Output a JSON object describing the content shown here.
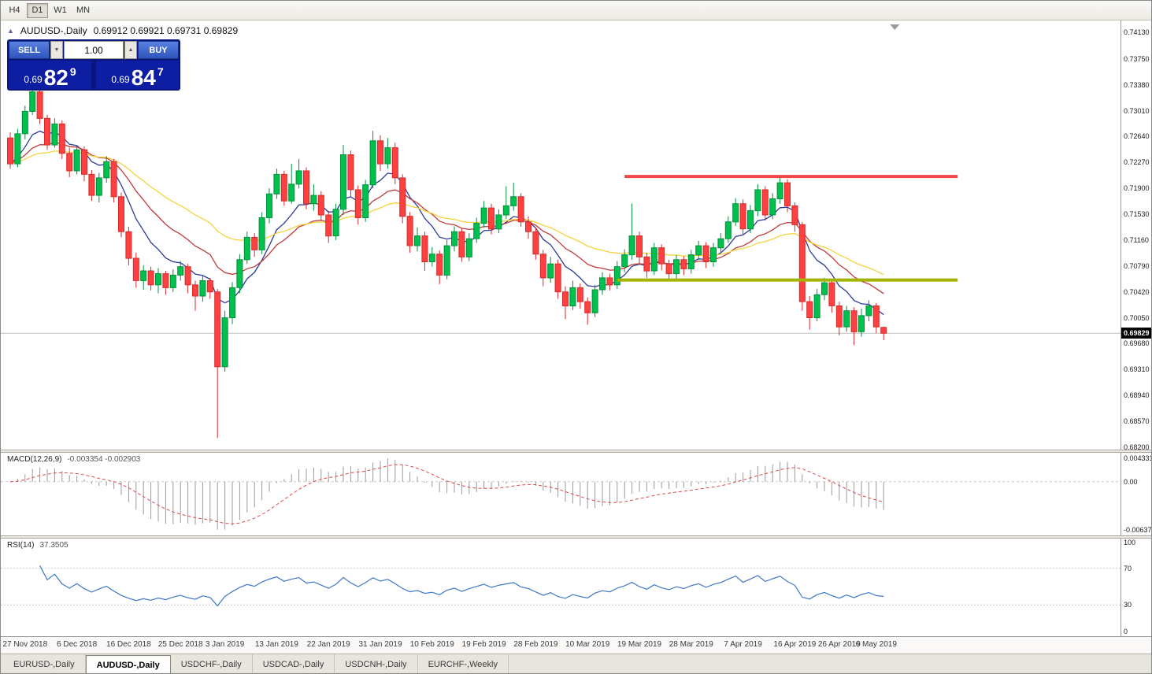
{
  "toolbar": {
    "timeframes": [
      {
        "label": "H4",
        "active": false
      },
      {
        "label": "D1",
        "active": true
      },
      {
        "label": "W1",
        "active": false
      },
      {
        "label": "MN",
        "active": false
      }
    ]
  },
  "chart": {
    "title": "AUDUSD-,Daily",
    "ohlc": "0.69912 0.69921 0.69731 0.69829"
  },
  "icons": {
    "collapse": "▲",
    "volume_down": "▼",
    "volume_up": "▲"
  },
  "one_click": {
    "sell_label": "SELL",
    "buy_label": "BUY",
    "volume": "1.00",
    "sell_price": {
      "small": "0.69",
      "big": "82",
      "sup": "9"
    },
    "buy_price": {
      "small": "0.69",
      "big": "84",
      "sup": "7"
    }
  },
  "price_axis": {
    "ticks": [
      "0.74130",
      "0.73750",
      "0.73380",
      "0.73010",
      "0.72640",
      "0.72270",
      "0.71900",
      "0.71530",
      "0.71160",
      "0.70790",
      "0.70420",
      "0.70050",
      "0.69680",
      "0.69310",
      "0.68940",
      "0.68570",
      "0.68200"
    ],
    "current": "0.69829"
  },
  "macd_axis": {
    "top": "0.004331",
    "zero": "0.00",
    "bottom": "-0.006371"
  },
  "rsi_axis": {
    "top": "100",
    "upper": "70",
    "lower": "30",
    "bottom": "0"
  },
  "indicators": {
    "macd_label": "MACD(12,26,9)",
    "macd_values": "-0.003354 -0.002903",
    "rsi_label": "RSI(14)",
    "rsi_value": "37.3505"
  },
  "tabs": [
    {
      "label": "EURUSD-,Daily",
      "active": false
    },
    {
      "label": "AUDUSD-,Daily",
      "active": true
    },
    {
      "label": "USDCHF-,Daily",
      "active": false
    },
    {
      "label": "USDCAD-,Daily",
      "active": false
    },
    {
      "label": "USDCNH-,Daily",
      "active": false
    },
    {
      "label": "EURCHF-,Weekly",
      "active": false
    }
  ],
  "colors": {
    "bull": "#00c14e",
    "bull_border": "#00913a",
    "bear": "#ff4040",
    "bear_border": "#d62b2b",
    "bid_line": "#c0c0c0",
    "macd_hist": "#9a9a9a",
    "macd_signal": "#e04848",
    "macd_zero": "#c8c8c8",
    "rsi_line": "#3e77c9",
    "rsi_level": "#c8c8c8",
    "shift_marker": "#9a9a9a"
  },
  "chart_data": {
    "type": "candlestick",
    "symbol": "AUDUSD",
    "timeframe": "Daily",
    "bid": 0.69829,
    "ask": 0.69847,
    "price_range": {
      "min": 0.68166,
      "max": 0.74299
    },
    "overlays": [
      {
        "name": "ma-fast",
        "type": "ema",
        "period": 8,
        "color": "#2c3b9b"
      },
      {
        "name": "ma-mid",
        "type": "ema",
        "period": 17,
        "color": "#c03a3a"
      },
      {
        "name": "ma-slow",
        "type": "ema",
        "period": 34,
        "color": "#f5d33c"
      }
    ],
    "objects": [
      {
        "name": "resistance-line",
        "type": "hline",
        "price": 0.7207,
        "from_index": 83,
        "to_index": 128,
        "color": "#f04848",
        "width": 4
      },
      {
        "name": "support-line",
        "type": "hline",
        "price": 0.7059,
        "from_index": 82,
        "to_index": 128,
        "color": "#a3b400",
        "width": 4
      }
    ],
    "indicator_settings": [
      {
        "type": "macd",
        "fast": 12,
        "slow": 26,
        "signal": 9
      },
      {
        "type": "rsi",
        "period": 14
      }
    ],
    "dates": [
      {
        "label": "27 Nov 2018",
        "index": 2
      },
      {
        "label": "6 Dec 2018",
        "index": 9
      },
      {
        "label": "16 Dec 2018",
        "index": 16
      },
      {
        "label": "25 Dec 2018",
        "index": 23
      },
      {
        "label": "3 Jan 2019",
        "index": 29
      },
      {
        "label": "13 Jan 2019",
        "index": 36
      },
      {
        "label": "22 Jan 2019",
        "index": 43
      },
      {
        "label": "31 Jan 2019",
        "index": 50
      },
      {
        "label": "10 Feb 2019",
        "index": 57
      },
      {
        "label": "19 Feb 2019",
        "index": 64
      },
      {
        "label": "28 Feb 2019",
        "index": 71
      },
      {
        "label": "10 Mar 2019",
        "index": 78
      },
      {
        "label": "19 Mar 2019",
        "index": 85
      },
      {
        "label": "28 Mar 2019",
        "index": 92
      },
      {
        "label": "7 Apr 2019",
        "index": 99
      },
      {
        "label": "16 Apr 2019",
        "index": 106
      },
      {
        "label": "26 Apr 2019",
        "index": 112
      },
      {
        "label": "6 May 2019",
        "index": 117
      }
    ],
    "candles": [
      [
        0.7262,
        0.727,
        0.7218,
        0.7225
      ],
      [
        0.7225,
        0.7275,
        0.722,
        0.7268
      ],
      [
        0.7268,
        0.7308,
        0.726,
        0.73
      ],
      [
        0.73,
        0.7337,
        0.7295,
        0.7328
      ],
      [
        0.7328,
        0.7332,
        0.7282,
        0.729
      ],
      [
        0.729,
        0.7295,
        0.7245,
        0.7252
      ],
      [
        0.7252,
        0.729,
        0.7248,
        0.7282
      ],
      [
        0.7282,
        0.7287,
        0.7232,
        0.724
      ],
      [
        0.724,
        0.7248,
        0.7206,
        0.7215
      ],
      [
        0.7215,
        0.7252,
        0.721,
        0.7245
      ],
      [
        0.7245,
        0.725,
        0.72,
        0.721
      ],
      [
        0.721,
        0.7216,
        0.7172,
        0.718
      ],
      [
        0.718,
        0.7212,
        0.717,
        0.7205
      ],
      [
        0.7205,
        0.7236,
        0.7198,
        0.7228
      ],
      [
        0.7228,
        0.7232,
        0.717,
        0.7178
      ],
      [
        0.7178,
        0.7184,
        0.712,
        0.7128
      ],
      [
        0.7128,
        0.7135,
        0.708,
        0.709
      ],
      [
        0.709,
        0.7098,
        0.7048,
        0.7058
      ],
      [
        0.7058,
        0.708,
        0.7045,
        0.7072
      ],
      [
        0.7072,
        0.7078,
        0.7044,
        0.7052
      ],
      [
        0.7052,
        0.7076,
        0.704,
        0.7068
      ],
      [
        0.7068,
        0.7072,
        0.7038,
        0.7048
      ],
      [
        0.7048,
        0.7074,
        0.7042,
        0.7066
      ],
      [
        0.7066,
        0.7086,
        0.7058,
        0.7078
      ],
      [
        0.7078,
        0.7082,
        0.704,
        0.7052
      ],
      [
        0.7052,
        0.7058,
        0.7015,
        0.7036
      ],
      [
        0.7036,
        0.7066,
        0.7028,
        0.7058
      ],
      [
        0.7058,
        0.7062,
        0.7032,
        0.7042
      ],
      [
        0.7042,
        0.7046,
        0.6833,
        0.6935
      ],
      [
        0.6935,
        0.7015,
        0.6928,
        0.7005
      ],
      [
        0.7005,
        0.7056,
        0.6996,
        0.7048
      ],
      [
        0.7048,
        0.7096,
        0.704,
        0.7088
      ],
      [
        0.7088,
        0.7128,
        0.7082,
        0.712
      ],
      [
        0.712,
        0.7126,
        0.7092,
        0.7102
      ],
      [
        0.7102,
        0.7156,
        0.7096,
        0.7148
      ],
      [
        0.7148,
        0.719,
        0.714,
        0.7182
      ],
      [
        0.7182,
        0.7218,
        0.7175,
        0.721
      ],
      [
        0.721,
        0.7215,
        0.7165,
        0.7172
      ],
      [
        0.7172,
        0.7225,
        0.7168,
        0.7196
      ],
      [
        0.7196,
        0.7232,
        0.719,
        0.7215
      ],
      [
        0.7215,
        0.722,
        0.716,
        0.7168
      ],
      [
        0.7168,
        0.7196,
        0.7158,
        0.718
      ],
      [
        0.718,
        0.7186,
        0.7144,
        0.7152
      ],
      [
        0.7152,
        0.7158,
        0.7112,
        0.7122
      ],
      [
        0.7122,
        0.7168,
        0.7116,
        0.716
      ],
      [
        0.716,
        0.7252,
        0.7152,
        0.7238
      ],
      [
        0.7238,
        0.7244,
        0.7178,
        0.7188
      ],
      [
        0.7188,
        0.7194,
        0.7138,
        0.7148
      ],
      [
        0.7148,
        0.7202,
        0.7142,
        0.7195
      ],
      [
        0.7195,
        0.7272,
        0.719,
        0.7258
      ],
      [
        0.7258,
        0.7266,
        0.7215,
        0.7225
      ],
      [
        0.7225,
        0.7262,
        0.7218,
        0.7248
      ],
      [
        0.7248,
        0.7255,
        0.7196,
        0.7205
      ],
      [
        0.7205,
        0.721,
        0.714,
        0.715
      ],
      [
        0.715,
        0.7156,
        0.7098,
        0.7108
      ],
      [
        0.7108,
        0.7134,
        0.71,
        0.7122
      ],
      [
        0.7122,
        0.7128,
        0.7072,
        0.7085
      ],
      [
        0.7085,
        0.7106,
        0.7078,
        0.7096
      ],
      [
        0.7096,
        0.7101,
        0.7053,
        0.7066
      ],
      [
        0.7066,
        0.7116,
        0.706,
        0.7108
      ],
      [
        0.7108,
        0.7136,
        0.71,
        0.7128
      ],
      [
        0.7128,
        0.7133,
        0.7085,
        0.7092
      ],
      [
        0.7092,
        0.7126,
        0.7086,
        0.7118
      ],
      [
        0.7118,
        0.7148,
        0.7112,
        0.714
      ],
      [
        0.714,
        0.7172,
        0.7134,
        0.7162
      ],
      [
        0.7162,
        0.7168,
        0.7124,
        0.7132
      ],
      [
        0.7132,
        0.716,
        0.7126,
        0.7152
      ],
      [
        0.7152,
        0.7193,
        0.7146,
        0.7165
      ],
      [
        0.7165,
        0.7198,
        0.7158,
        0.7178
      ],
      [
        0.7178,
        0.7183,
        0.7135,
        0.7142
      ],
      [
        0.7142,
        0.715,
        0.7118,
        0.7128
      ],
      [
        0.7128,
        0.7134,
        0.7088,
        0.7096
      ],
      [
        0.7096,
        0.7102,
        0.705,
        0.7062
      ],
      [
        0.7062,
        0.7092,
        0.7055,
        0.7082
      ],
      [
        0.7082,
        0.7088,
        0.7032,
        0.7042
      ],
      [
        0.7042,
        0.705,
        0.7003,
        0.7022
      ],
      [
        0.7022,
        0.7058,
        0.7016,
        0.7048
      ],
      [
        0.7048,
        0.7054,
        0.7018,
        0.7028
      ],
      [
        0.7028,
        0.7034,
        0.6995,
        0.7012
      ],
      [
        0.7012,
        0.7052,
        0.7006,
        0.7045
      ],
      [
        0.7045,
        0.707,
        0.7038,
        0.7062
      ],
      [
        0.7062,
        0.7068,
        0.7044,
        0.7052
      ],
      [
        0.7052,
        0.7086,
        0.7046,
        0.7078
      ],
      [
        0.7078,
        0.7103,
        0.707,
        0.7095
      ],
      [
        0.7095,
        0.7168,
        0.7088,
        0.7122
      ],
      [
        0.7122,
        0.7128,
        0.7082,
        0.7092
      ],
      [
        0.7092,
        0.7098,
        0.7062,
        0.7072
      ],
      [
        0.7072,
        0.7112,
        0.7066,
        0.7105
      ],
      [
        0.7105,
        0.711,
        0.7073,
        0.7082
      ],
      [
        0.7082,
        0.7088,
        0.7058,
        0.7068
      ],
      [
        0.7068,
        0.7095,
        0.706,
        0.7088
      ],
      [
        0.7088,
        0.7093,
        0.7066,
        0.7075
      ],
      [
        0.7075,
        0.7102,
        0.7068,
        0.7095
      ],
      [
        0.7095,
        0.7115,
        0.7088,
        0.7108
      ],
      [
        0.7108,
        0.7113,
        0.7076,
        0.7085
      ],
      [
        0.7085,
        0.7112,
        0.7078,
        0.7105
      ],
      [
        0.7105,
        0.7126,
        0.7098,
        0.7118
      ],
      [
        0.7118,
        0.715,
        0.7112,
        0.7142
      ],
      [
        0.7142,
        0.7176,
        0.7136,
        0.7168
      ],
      [
        0.7168,
        0.7174,
        0.7124,
        0.7132
      ],
      [
        0.7132,
        0.7166,
        0.7126,
        0.7158
      ],
      [
        0.7158,
        0.7196,
        0.715,
        0.7188
      ],
      [
        0.7188,
        0.7193,
        0.7144,
        0.7152
      ],
      [
        0.7152,
        0.7183,
        0.7146,
        0.7175
      ],
      [
        0.7175,
        0.7206,
        0.7168,
        0.7198
      ],
      [
        0.7198,
        0.7203,
        0.7156,
        0.7165
      ],
      [
        0.7165,
        0.717,
        0.7128,
        0.7138
      ],
      [
        0.7138,
        0.7142,
        0.7015,
        0.7028
      ],
      [
        0.7028,
        0.7036,
        0.6988,
        0.7005
      ],
      [
        0.7005,
        0.7046,
        0.7,
        0.7038
      ],
      [
        0.7038,
        0.7062,
        0.703,
        0.7055
      ],
      [
        0.7055,
        0.706,
        0.7012,
        0.7022
      ],
      [
        0.7022,
        0.7028,
        0.698,
        0.6992
      ],
      [
        0.6992,
        0.7022,
        0.6985,
        0.7015
      ],
      [
        0.7015,
        0.702,
        0.6966,
        0.6985
      ],
      [
        0.6985,
        0.7018,
        0.6978,
        0.7008
      ],
      [
        0.7008,
        0.703,
        0.7,
        0.7022
      ],
      [
        0.7022,
        0.7026,
        0.6983,
        0.6992
      ],
      [
        0.69912,
        0.69921,
        0.69731,
        0.69829
      ]
    ]
  }
}
